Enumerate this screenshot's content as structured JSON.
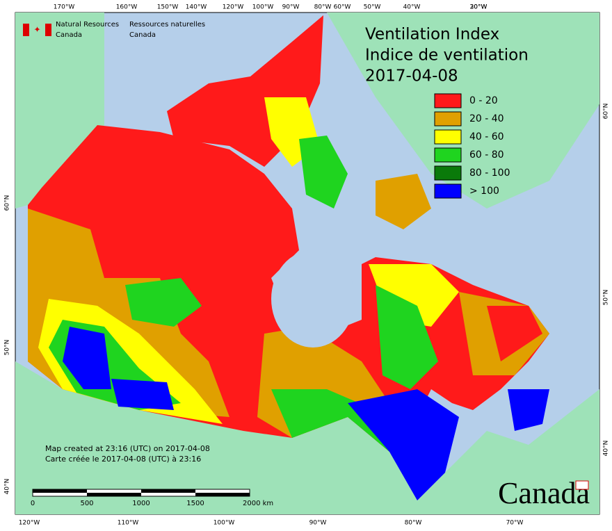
{
  "title": {
    "line1": "Ventilation Index",
    "line2": "Indice de ventilation",
    "date": "2017-04-08"
  },
  "logo": {
    "en_line1": "Natural Resources",
    "en_line2": "Canada",
    "fr_line1": "Ressources naturelles",
    "fr_line2": "Canada"
  },
  "legend": {
    "items": [
      {
        "label": "0 - 20",
        "color": "#ff1a1a"
      },
      {
        "label": "20 - 40",
        "color": "#e0a000"
      },
      {
        "label": "40 - 60",
        "color": "#ffff00"
      },
      {
        "label": "60 - 80",
        "color": "#1fd41f"
      },
      {
        "label": "80 - 100",
        "color": "#0a7a0a"
      },
      {
        "label": "> 100",
        "color": "#0000ff"
      }
    ]
  },
  "graticule": {
    "top": [
      "170°W",
      "160°W",
      "150°W",
      "140°W",
      "120°W",
      "100°W",
      "90°W",
      "80°W",
      "60°W",
      "50°W",
      "40°W",
      "30°W",
      "20°W"
    ],
    "bottom": [
      "120°W",
      "110°W",
      "100°W",
      "90°W",
      "80°W",
      "70°W"
    ],
    "left": [
      "60°N",
      "50°N",
      "40°N"
    ],
    "right": [
      "60°N",
      "50°N",
      "40°N"
    ]
  },
  "credits": {
    "en": "Map created at 23:16 (UTC) on 2017-04-08",
    "fr": "Carte créée le 2017-04-08 (UTC) à 23:16"
  },
  "scale_bar": {
    "labels": [
      "0",
      "500",
      "1000",
      "1500",
      "2000  km"
    ]
  },
  "wordmark": "Canada"
}
